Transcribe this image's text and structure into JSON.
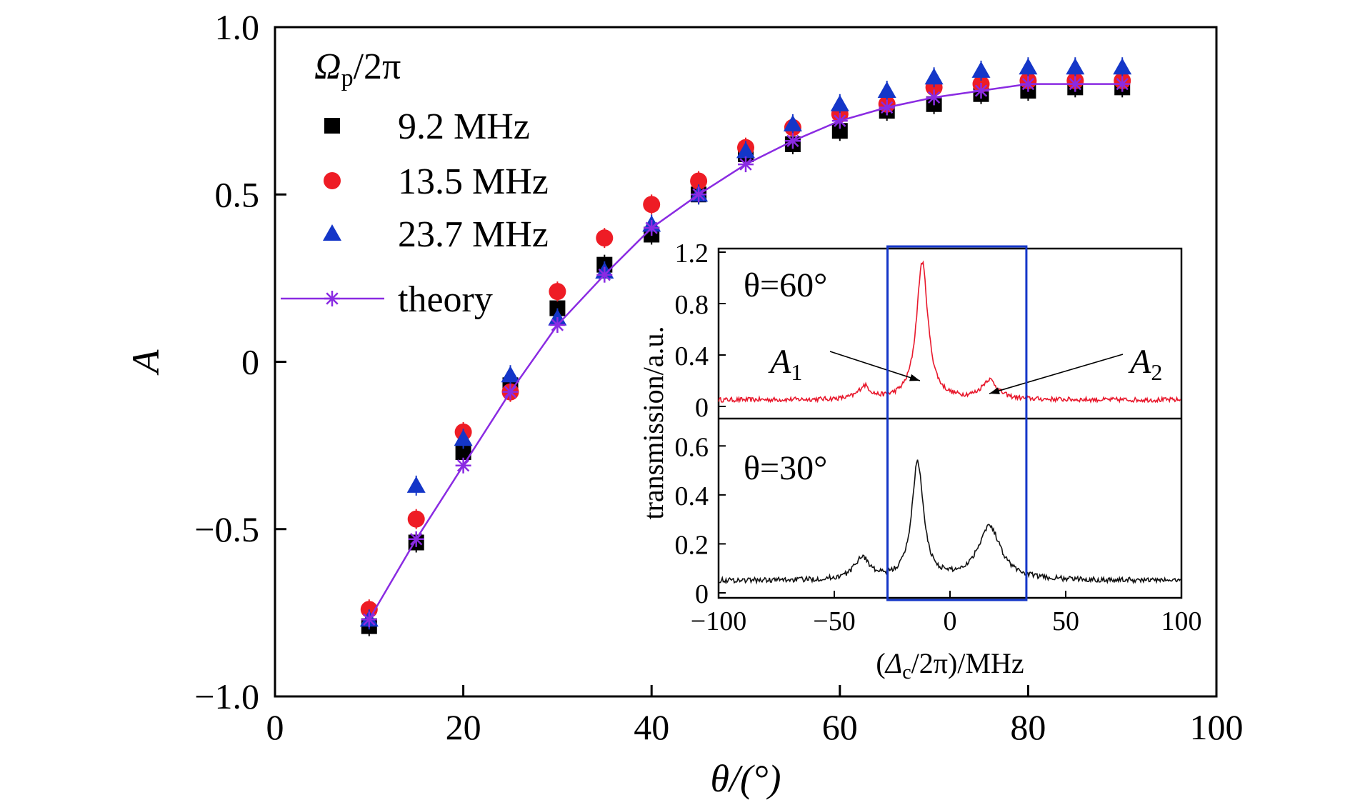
{
  "chart_data": [
    {
      "type": "scatter",
      "title": "",
      "xlabel": "θ/(°)",
      "ylabel": "A",
      "xlim": [
        0,
        100
      ],
      "ylim": [
        -1.0,
        1.0
      ],
      "xticks": [
        0,
        20,
        40,
        60,
        80,
        100
      ],
      "xtick_labels": [
        "0",
        "20",
        "40",
        "60",
        "80",
        "100"
      ],
      "yticks": [
        -1.0,
        -0.5,
        0,
        0.5,
        1.0
      ],
      "ytick_labels": [
        "−1.0",
        "−0.5",
        "0",
        "0.5",
        "1.0"
      ],
      "legend": {
        "title": "Ωp/2π",
        "title_main": "Ω",
        "title_sub": "p",
        "title_tail": "/2π",
        "placement": "top-left"
      },
      "series": [
        {
          "name": "9.2 MHz",
          "marker": "square",
          "color": "#000000",
          "x": [
            10,
            15,
            20,
            25,
            30,
            35,
            40,
            45,
            50,
            55,
            60,
            65,
            70,
            75,
            80,
            85,
            90
          ],
          "y": [
            -0.79,
            -0.54,
            -0.27,
            -0.07,
            0.16,
            0.29,
            0.38,
            0.5,
            0.62,
            0.65,
            0.69,
            0.75,
            0.77,
            0.8,
            0.81,
            0.82,
            0.82
          ]
        },
        {
          "name": "13.5 MHz",
          "marker": "circle",
          "color": "#ee1c25",
          "x": [
            10,
            15,
            20,
            25,
            30,
            35,
            40,
            45,
            50,
            55,
            60,
            65,
            70,
            75,
            80,
            85,
            90
          ],
          "y": [
            -0.74,
            -0.47,
            -0.21,
            -0.09,
            0.21,
            0.37,
            0.47,
            0.54,
            0.64,
            0.7,
            0.74,
            0.77,
            0.82,
            0.83,
            0.84,
            0.84,
            0.84
          ]
        },
        {
          "name": "23.7 MHz",
          "marker": "triangle",
          "color": "#1436c8",
          "x": [
            10,
            15,
            20,
            25,
            30,
            35,
            40,
            45,
            50,
            55,
            60,
            65,
            70,
            75,
            80,
            85,
            90
          ],
          "y": [
            -0.77,
            -0.37,
            -0.23,
            -0.04,
            0.13,
            0.27,
            0.41,
            0.5,
            0.63,
            0.71,
            0.77,
            0.81,
            0.85,
            0.87,
            0.88,
            0.88,
            0.88
          ]
        },
        {
          "name": "theory",
          "marker": "asterisk-line",
          "color": "#8a2be2",
          "x": [
            10,
            15,
            20,
            25,
            30,
            35,
            40,
            45,
            50,
            55,
            60,
            65,
            70,
            75,
            80,
            85,
            90
          ],
          "y": [
            -0.77,
            -0.53,
            -0.31,
            -0.09,
            0.11,
            0.26,
            0.4,
            0.5,
            0.59,
            0.66,
            0.72,
            0.76,
            0.79,
            0.81,
            0.83,
            0.83,
            0.83
          ]
        }
      ]
    },
    {
      "type": "line",
      "panel": "inset",
      "xlabel": "(Δc/2π)/MHz",
      "xlabel_parts": [
        "(",
        "Δ",
        "c",
        "/2π)/MHz"
      ],
      "ylabel": "transmission/a.u.",
      "xlim": [
        -100,
        100
      ],
      "xticks": [
        -100,
        -50,
        0,
        50,
        100
      ],
      "xtick_labels": [
        "−100",
        "−50",
        "0",
        "50",
        "100"
      ],
      "highlight_box_x": [
        -27,
        33
      ],
      "highlight_box_color": "#1436c8",
      "panels": [
        {
          "label": "θ=60°",
          "color": "#e8182c",
          "ylim": [
            0,
            1.2
          ],
          "yticks": [
            0,
            0.4,
            0.8,
            1.2
          ],
          "ytick_labels": [
            "0",
            "0.4",
            "0.8",
            "1.2"
          ],
          "baseline": 0.05,
          "peaks": [
            {
              "center": -37,
              "height": 0.1,
              "width": 3
            },
            {
              "center": -12,
              "height": 1.07,
              "width": 3
            },
            {
              "center": 17,
              "height": 0.15,
              "width": 4
            }
          ],
          "annotations": [
            {
              "label_main": "A",
              "label_sub": "1",
              "target_x": -13,
              "target_y": 0.2
            },
            {
              "label_main": "A",
              "label_sub": "2",
              "target_x": 17,
              "target_y": 0.1
            }
          ]
        },
        {
          "label": "θ=30°",
          "color": "#111111",
          "ylim": [
            0,
            0.7
          ],
          "yticks": [
            0,
            0.2,
            0.4,
            0.6
          ],
          "ytick_labels": [
            "0",
            "0.2",
            "0.4",
            "0.6"
          ],
          "baseline": 0.05,
          "peaks": [
            {
              "center": -38,
              "height": 0.09,
              "width": 4
            },
            {
              "center": -14,
              "height": 0.48,
              "width": 3
            },
            {
              "center": 17,
              "height": 0.22,
              "width": 6
            }
          ]
        }
      ]
    }
  ]
}
